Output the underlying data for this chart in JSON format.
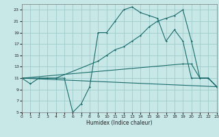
{
  "xlabel": "Humidex (Indice chaleur)",
  "bg_color": "#c8e8e8",
  "grid_color": "#a0cccc",
  "line_color": "#1a6b6b",
  "xlim": [
    0,
    23
  ],
  "ylim": [
    5,
    24
  ],
  "yticks": [
    5,
    7,
    9,
    11,
    13,
    15,
    17,
    19,
    21,
    23
  ],
  "xticks": [
    0,
    1,
    2,
    3,
    4,
    5,
    6,
    7,
    8,
    9,
    10,
    11,
    12,
    13,
    14,
    15,
    16,
    17,
    18,
    19,
    20,
    21,
    22,
    23
  ],
  "curve1_x": [
    0,
    1,
    2,
    3,
    4,
    5,
    6,
    7,
    8,
    9,
    10,
    11,
    12,
    13,
    14,
    15,
    16,
    17,
    18,
    19,
    20,
    21,
    22,
    23
  ],
  "curve1_y": [
    11,
    10,
    11,
    11,
    11,
    11,
    5,
    6.5,
    9.5,
    19,
    19,
    21,
    23,
    23.5,
    22.5,
    22,
    21.5,
    17.5,
    19.5,
    17.5,
    11,
    11,
    11,
    9.5
  ],
  "curve2_x": [
    0,
    3,
    4,
    9,
    10,
    11,
    12,
    13,
    14,
    15,
    16,
    17,
    18,
    19,
    20,
    21,
    22,
    23
  ],
  "curve2_y": [
    11,
    11,
    11,
    14,
    15,
    16,
    16.5,
    17.5,
    18.5,
    20,
    21,
    21.5,
    22,
    23,
    17.5,
    11,
    11,
    9.5
  ],
  "curve3_x": [
    0,
    23
  ],
  "curve3_y": [
    11,
    9.5
  ],
  "curve4_x": [
    0,
    19,
    20,
    21,
    22,
    23
  ],
  "curve4_y": [
    11,
    13.5,
    13.5,
    11,
    11,
    9.5
  ]
}
